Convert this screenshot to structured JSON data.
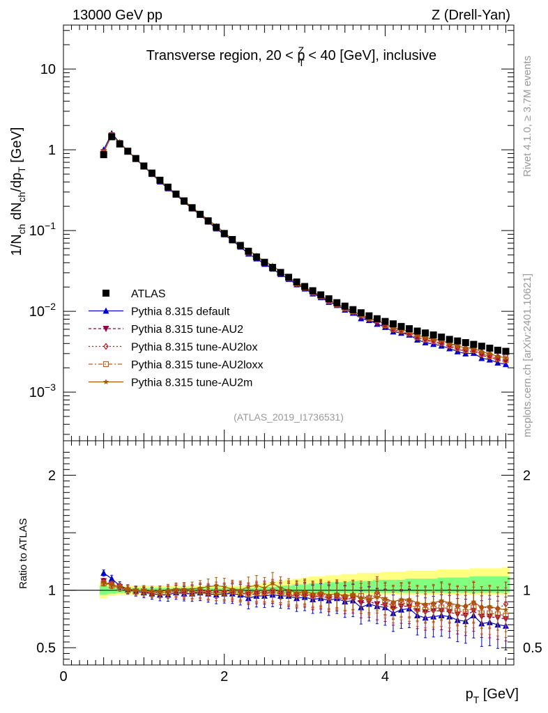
{
  "header": {
    "left": "13000 GeV pp",
    "right": "Z (Drell-Yan)"
  },
  "side_labels": {
    "rivet": "Rivet 4.1.0, ≥ 3.7M events",
    "mcplots": "mcplots.cern.ch [arXiv:2401.10621]"
  },
  "analysis_id": "(ATLAS_2019_I1736531)",
  "colors": {
    "atlas": "#000000",
    "default": "#0000cc",
    "au2": "#9b0044",
    "au2lox": "#b8192b",
    "au2loxx": "#c45a1e",
    "au2m": "#a35a00",
    "band_outer": "#ffff80",
    "band_inner": "#80ff80"
  },
  "chart_data": [
    {
      "type": "scatter",
      "panel": "main",
      "title": "Transverse region, 20 < pTZ < 40 [GeV], inclusive",
      "title_parts": {
        "pre": "Transverse region, 20 < p",
        "sup": "Z",
        "sub": "T",
        "post": " < 40 [GeV], inclusive"
      },
      "ylabel": "1/N_ch dN_ch/dp_T [GeV]",
      "xlabel": "p_T [GeV]",
      "yscale": "log",
      "xlim": [
        0,
        5.6
      ],
      "ylim": [
        0.00025,
        35
      ],
      "x_ticks": [
        0,
        2,
        4
      ],
      "y_ticks": [
        {
          "value": 10,
          "label": "10"
        },
        {
          "value": 1,
          "label": "1"
        },
        {
          "value": 0.1,
          "base": "10",
          "exp": "−1"
        },
        {
          "value": 0.01,
          "base": "10",
          "exp": "−2"
        },
        {
          "value": 0.001,
          "base": "10",
          "exp": "−3"
        }
      ],
      "x": [
        0.5,
        0.6,
        0.7,
        0.8,
        0.9,
        1.0,
        1.1,
        1.2,
        1.3,
        1.4,
        1.5,
        1.6,
        1.7,
        1.8,
        1.9,
        2.0,
        2.1,
        2.2,
        2.3,
        2.4,
        2.5,
        2.6,
        2.7,
        2.8,
        2.9,
        3.0,
        3.1,
        3.2,
        3.3,
        3.4,
        3.5,
        3.6,
        3.7,
        3.8,
        3.9,
        4.0,
        4.1,
        4.2,
        4.3,
        4.4,
        4.5,
        4.6,
        4.7,
        4.8,
        4.9,
        5.0,
        5.1,
        5.2,
        5.3,
        5.4,
        5.5
      ],
      "atlas": [
        0.87,
        1.45,
        1.18,
        0.96,
        0.78,
        0.63,
        0.515,
        0.42,
        0.345,
        0.283,
        0.233,
        0.192,
        0.159,
        0.132,
        0.11,
        0.092,
        0.0775,
        0.0655,
        0.0555,
        0.0472,
        0.0405,
        0.035,
        0.0303,
        0.0264,
        0.0231,
        0.0203,
        0.018,
        0.016,
        0.0143,
        0.0128,
        0.0116,
        0.0105,
        0.0096,
        0.0088,
        0.0081,
        0.0075,
        0.007,
        0.0065,
        0.0061,
        0.0057,
        0.0054,
        0.0051,
        0.0048,
        0.0045,
        0.0043,
        0.0041,
        0.0039,
        0.0037,
        0.0035,
        0.0033,
        0.0032
      ],
      "legend": [
        {
          "key": "atlas",
          "label": "ATLAS"
        },
        {
          "key": "default",
          "label": "Pythia 8.315 default"
        },
        {
          "key": "au2",
          "label": "Pythia 8.315 tune-AU2"
        },
        {
          "key": "au2lox",
          "label": "Pythia 8.315 tune-AU2lox"
        },
        {
          "key": "au2loxx",
          "label": "Pythia 8.315 tune-AU2loxx"
        },
        {
          "key": "au2m",
          "label": "Pythia 8.315 tune-AU2m"
        }
      ]
    },
    {
      "type": "line",
      "panel": "ratio",
      "ylabel": "Ratio to ATLAS",
      "xlim": [
        0,
        5.6
      ],
      "ylim": [
        0.35,
        2.3
      ],
      "y_ticks": [
        {
          "value": 0.5,
          "label": "0.5"
        },
        {
          "value": 1,
          "label": "1"
        },
        {
          "value": 2,
          "label": "2"
        }
      ],
      "band_inner": [
        0.96,
        0.97,
        0.98,
        0.98,
        0.98,
        0.98,
        0.98,
        0.98,
        0.98,
        0.98,
        0.98,
        0.98,
        0.98,
        0.98,
        0.98,
        0.98,
        0.98,
        0.98,
        0.98,
        0.98,
        0.98,
        0.98,
        0.98,
        0.98,
        0.98,
        0.98,
        0.98,
        0.98,
        0.98,
        0.98,
        0.98,
        0.98,
        0.98,
        0.98,
        0.98,
        0.98,
        0.98,
        0.98,
        0.98,
        0.98,
        0.98,
        0.98,
        0.98,
        0.98,
        0.98,
        0.98,
        0.98,
        0.98,
        0.98,
        0.98,
        0.98
      ],
      "band_inner_hi": [
        1.04,
        1.03,
        1.02,
        1.02,
        1.02,
        1.02,
        1.02,
        1.02,
        1.02,
        1.02,
        1.02,
        1.02,
        1.02,
        1.02,
        1.02,
        1.02,
        1.02,
        1.02,
        1.02,
        1.02,
        1.03,
        1.03,
        1.04,
        1.04,
        1.05,
        1.05,
        1.06,
        1.06,
        1.07,
        1.07,
        1.07,
        1.08,
        1.08,
        1.08,
        1.09,
        1.09,
        1.09,
        1.09,
        1.1,
        1.1,
        1.1,
        1.1,
        1.11,
        1.11,
        1.11,
        1.11,
        1.12,
        1.12,
        1.12,
        1.12,
        1.12
      ],
      "band_outer_lo": [
        0.93,
        0.95,
        0.96,
        0.96,
        0.96,
        0.96,
        0.96,
        0.96,
        0.96,
        0.96,
        0.96,
        0.96,
        0.96,
        0.96,
        0.96,
        0.96,
        0.96,
        0.96,
        0.96,
        0.96,
        0.96,
        0.96,
        0.96,
        0.96,
        0.96,
        0.96,
        0.96,
        0.96,
        0.96,
        0.96,
        0.96,
        0.96,
        0.96,
        0.96,
        0.96,
        0.96,
        0.96,
        0.96,
        0.96,
        0.96,
        0.96,
        0.96,
        0.96,
        0.96,
        0.96,
        0.96,
        0.96,
        0.96,
        0.96,
        0.96,
        0.96
      ],
      "band_outer_hi": [
        1.07,
        1.05,
        1.04,
        1.04,
        1.04,
        1.04,
        1.04,
        1.04,
        1.04,
        1.04,
        1.04,
        1.04,
        1.04,
        1.04,
        1.04,
        1.04,
        1.04,
        1.04,
        1.04,
        1.05,
        1.06,
        1.07,
        1.08,
        1.09,
        1.1,
        1.11,
        1.12,
        1.12,
        1.13,
        1.13,
        1.14,
        1.14,
        1.15,
        1.15,
        1.15,
        1.16,
        1.16,
        1.16,
        1.17,
        1.17,
        1.17,
        1.17,
        1.18,
        1.18,
        1.18,
        1.18,
        1.19,
        1.19,
        1.19,
        1.19,
        1.2
      ],
      "series": [
        {
          "key": "default",
          "name": "Pythia 8.315 default",
          "marker": "triangle-up",
          "values": [
            1.15,
            1.1,
            1.04,
            1.01,
            0.99,
            0.98,
            0.97,
            0.96,
            0.96,
            0.98,
            0.97,
            0.97,
            0.98,
            0.97,
            0.96,
            0.97,
            0.97,
            0.96,
            0.93,
            0.95,
            0.95,
            0.96,
            0.95,
            0.95,
            0.93,
            0.94,
            0.92,
            0.93,
            0.91,
            0.93,
            0.9,
            0.91,
            0.85,
            0.88,
            0.86,
            0.85,
            0.8,
            0.83,
            0.84,
            0.78,
            0.76,
            0.77,
            0.78,
            0.77,
            0.74,
            0.73,
            0.78,
            0.71,
            0.72,
            0.7,
            0.69
          ]
        },
        {
          "key": "au2",
          "name": "Pythia 8.315 tune-AU2",
          "marker": "triangle-down",
          "values": [
            1.08,
            1.05,
            1.03,
            1.0,
            0.99,
            0.99,
            0.98,
            0.98,
            0.98,
            0.99,
            0.98,
            0.98,
            0.99,
            0.98,
            0.98,
            0.98,
            0.98,
            0.98,
            0.96,
            0.97,
            0.97,
            0.98,
            0.97,
            0.96,
            0.95,
            0.96,
            0.94,
            0.95,
            0.93,
            0.94,
            0.92,
            0.93,
            0.89,
            0.9,
            0.88,
            0.87,
            0.84,
            0.86,
            0.86,
            0.82,
            0.81,
            0.82,
            0.82,
            0.81,
            0.79,
            0.78,
            0.82,
            0.77,
            0.77,
            0.76,
            0.75
          ]
        },
        {
          "key": "au2lox",
          "name": "Pythia 8.315 tune-AU2lox",
          "marker": "diamond",
          "values": [
            1.07,
            1.05,
            1.03,
            1.01,
            1.0,
            1.0,
            0.99,
            0.99,
            0.99,
            1.0,
            1.0,
            0.99,
            1.0,
            0.99,
            1.0,
            0.99,
            1.0,
            0.99,
            0.98,
            0.99,
            0.99,
            1.0,
            0.99,
            0.98,
            0.97,
            0.98,
            0.96,
            0.97,
            0.95,
            0.96,
            0.95,
            0.96,
            0.93,
            0.94,
            0.98,
            0.92,
            0.89,
            0.91,
            0.91,
            0.88,
            0.87,
            0.88,
            0.9,
            0.88,
            0.86,
            0.86,
            0.89,
            0.85,
            0.85,
            0.84,
            0.88
          ]
        },
        {
          "key": "au2loxx",
          "name": "Pythia 8.315 tune-AU2loxx",
          "marker": "square",
          "values": [
            1.06,
            1.04,
            1.02,
            1.0,
            0.99,
            0.99,
            0.98,
            0.98,
            0.98,
            0.99,
            0.99,
            0.98,
            0.99,
            0.98,
            0.98,
            0.98,
            0.99,
            0.98,
            0.97,
            0.98,
            0.98,
            0.99,
            0.98,
            0.97,
            0.96,
            0.97,
            0.95,
            0.96,
            0.94,
            0.95,
            0.94,
            0.95,
            0.95,
            0.93,
            0.96,
            0.9,
            0.86,
            0.89,
            0.88,
            0.84,
            0.83,
            0.84,
            0.85,
            0.84,
            0.82,
            0.81,
            0.85,
            0.8,
            0.8,
            0.79,
            0.78
          ]
        },
        {
          "key": "au2m",
          "name": "Pythia 8.315 tune-AU2m",
          "marker": "star",
          "values": [
            1.06,
            1.05,
            1.03,
            1.01,
            1.0,
            1.0,
            0.99,
            0.99,
            1.0,
            1.01,
            1.01,
            1.01,
            1.02,
            1.03,
            1.04,
            1.03,
            1.01,
            1.0,
            1.03,
            1.04,
            1.02,
            1.06,
            1.02,
            1.0,
            0.98,
            0.99,
            0.97,
            0.98,
            0.96,
            0.97,
            0.95,
            0.96,
            0.93,
            0.92,
            0.94,
            0.93,
            0.9,
            0.92,
            0.92,
            0.89,
            0.88,
            0.89,
            0.91,
            0.89,
            0.87,
            0.86,
            0.9,
            0.85,
            0.86,
            0.84,
            0.83
          ]
        }
      ]
    }
  ]
}
